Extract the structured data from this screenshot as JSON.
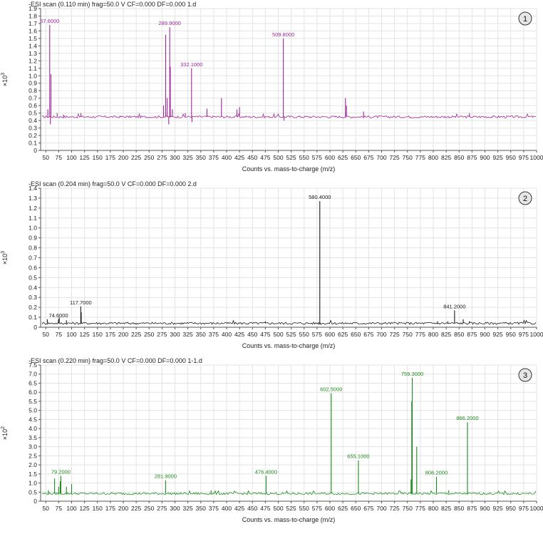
{
  "chart_data": [
    {
      "type": "line",
      "title": "-ESI scan (0.110 min) frag=50.0 V CF=0.000 DF=0.000 1.d",
      "badge": "1",
      "xlabel": "Counts vs. mass-to-charge (m/z)",
      "ylabel": "×10",
      "yexp": "3",
      "color": "#a0269a",
      "xlim": [
        40,
        1000
      ],
      "ylim": [
        0,
        1.9
      ],
      "ystep": 0.1,
      "ydecimals": 1,
      "baseline": 0.45,
      "x_ticks": [
        50,
        75,
        100,
        125,
        150,
        175,
        200,
        225,
        250,
        275,
        300,
        325,
        350,
        375,
        400,
        425,
        450,
        475,
        500,
        525,
        550,
        575,
        600,
        625,
        650,
        675,
        700,
        725,
        750,
        775,
        800,
        825,
        850,
        875,
        900,
        925,
        950,
        975,
        1000
      ],
      "peaks": [
        {
          "x": 54,
          "y": 0.55
        },
        {
          "x": 57.6,
          "y": 1.68
        },
        {
          "x": 60,
          "y": 1.02
        },
        {
          "x": 59,
          "y": 0.35
        },
        {
          "x": 72,
          "y": 0.5
        },
        {
          "x": 84,
          "y": 0.48
        },
        {
          "x": 118,
          "y": 0.5
        },
        {
          "x": 278,
          "y": 0.6
        },
        {
          "x": 282,
          "y": 1.55
        },
        {
          "x": 285,
          "y": 0.7
        },
        {
          "x": 288,
          "y": 0.35
        },
        {
          "x": 289.9,
          "y": 1.65
        },
        {
          "x": 291,
          "y": 1.12
        },
        {
          "x": 295,
          "y": 0.55
        },
        {
          "x": 320,
          "y": 0.5
        },
        {
          "x": 332.1,
          "y": 1.1
        },
        {
          "x": 333,
          "y": 0.38
        },
        {
          "x": 362,
          "y": 0.56
        },
        {
          "x": 390,
          "y": 0.7
        },
        {
          "x": 420,
          "y": 0.55
        },
        {
          "x": 425,
          "y": 0.58
        },
        {
          "x": 509.8,
          "y": 1.5
        },
        {
          "x": 511,
          "y": 0.4
        },
        {
          "x": 630,
          "y": 0.7
        },
        {
          "x": 632,
          "y": 0.6
        },
        {
          "x": 665,
          "y": 0.52
        },
        {
          "x": 870,
          "y": 0.5
        }
      ],
      "labels": [
        {
          "x": 57.6,
          "y": 1.68,
          "text": "57.6000"
        },
        {
          "x": 289.9,
          "y": 1.65,
          "text": "289.9000"
        },
        {
          "x": 332.1,
          "y": 1.1,
          "text": "332.1000"
        },
        {
          "x": 509.8,
          "y": 1.5,
          "text": "509.8000"
        }
      ]
    },
    {
      "type": "line",
      "title": "-ESI scan (0.204 min) frag=50.0 V CF=0.000 DF=0.000 2.d",
      "badge": "2",
      "xlabel": "Counts vs. mass-to-charge (m/z)",
      "ylabel": "×10",
      "yexp": "3",
      "color": "#1a1a1a",
      "xlim": [
        40,
        1000
      ],
      "ylim": [
        0,
        1.4
      ],
      "ystep": 0.1,
      "ydecimals": 1,
      "baseline": 0.04,
      "x_ticks": [
        50,
        75,
        100,
        125,
        150,
        175,
        200,
        225,
        250,
        275,
        300,
        325,
        350,
        375,
        400,
        425,
        450,
        475,
        500,
        525,
        550,
        575,
        600,
        625,
        650,
        675,
        700,
        725,
        750,
        775,
        800,
        825,
        850,
        875,
        900,
        925,
        950,
        975,
        1000
      ],
      "peaks": [
        {
          "x": 53,
          "y": 0.08
        },
        {
          "x": 74.6,
          "y": 0.08
        },
        {
          "x": 76,
          "y": 0.1
        },
        {
          "x": 90,
          "y": 0.07
        },
        {
          "x": 117.7,
          "y": 0.21
        },
        {
          "x": 118.6,
          "y": 0.15
        },
        {
          "x": 475,
          "y": 0.06
        },
        {
          "x": 578,
          "y": 0.05
        },
        {
          "x": 580.4,
          "y": 1.27
        },
        {
          "x": 581,
          "y": 0.03
        },
        {
          "x": 808,
          "y": 0.06
        },
        {
          "x": 828,
          "y": 0.06
        },
        {
          "x": 841.2,
          "y": 0.17
        },
        {
          "x": 858,
          "y": 0.08
        },
        {
          "x": 870,
          "y": 0.06
        }
      ],
      "labels": [
        {
          "x": 74.6,
          "y": 0.08,
          "text": "74.6000"
        },
        {
          "x": 117.7,
          "y": 0.21,
          "text": "117.7000"
        },
        {
          "x": 580.4,
          "y": 1.27,
          "text": "580.4000"
        },
        {
          "x": 841.2,
          "y": 0.17,
          "text": "841.2000"
        }
      ]
    },
    {
      "type": "line",
      "title": "-ESI scan (0.220 min) frag=50.0 V CF=0.000 DF=0.000 1-1.d",
      "badge": "3",
      "xlabel": "Counts vs. mass-to-charge (m/z)",
      "ylabel": "×10",
      "yexp": "2",
      "color": "#1e8a1e",
      "xlim": [
        40,
        1000
      ],
      "ylim": [
        0,
        7.5
      ],
      "ystep": 0.5,
      "ydecimals": 1,
      "baseline": 0.42,
      "x_ticks": [
        50,
        75,
        100,
        125,
        150,
        175,
        200,
        225,
        250,
        275,
        300,
        325,
        350,
        375,
        400,
        425,
        450,
        475,
        500,
        525,
        550,
        575,
        600,
        625,
        650,
        675,
        700,
        725,
        750,
        775,
        800,
        825,
        850,
        875,
        900,
        925,
        950,
        975,
        1000
      ],
      "peaks": [
        {
          "x": 55,
          "y": 0.6
        },
        {
          "x": 67,
          "y": 1.25
        },
        {
          "x": 75,
          "y": 0.8
        },
        {
          "x": 78,
          "y": 1.1
        },
        {
          "x": 79.2,
          "y": 1.4
        },
        {
          "x": 90,
          "y": 0.8
        },
        {
          "x": 100,
          "y": 0.95
        },
        {
          "x": 281.9,
          "y": 1.15
        },
        {
          "x": 370,
          "y": 0.6
        },
        {
          "x": 476.4,
          "y": 1.4
        },
        {
          "x": 602.5,
          "y": 5.95
        },
        {
          "x": 655.1,
          "y": 2.25
        },
        {
          "x": 757,
          "y": 1.2
        },
        {
          "x": 758.4,
          "y": 5.5
        },
        {
          "x": 759.3,
          "y": 6.8
        },
        {
          "x": 768,
          "y": 3.0
        },
        {
          "x": 806.2,
          "y": 1.35
        },
        {
          "x": 830,
          "y": 0.6
        },
        {
          "x": 866.2,
          "y": 4.35
        }
      ],
      "labels": [
        {
          "x": 79.2,
          "y": 1.4,
          "text": "79.2000"
        },
        {
          "x": 281.9,
          "y": 1.15,
          "text": "281.9000"
        },
        {
          "x": 476.4,
          "y": 1.4,
          "text": "476.4000"
        },
        {
          "x": 602.5,
          "y": 5.95,
          "text": "602.5000"
        },
        {
          "x": 655.1,
          "y": 2.25,
          "text": "655.1000"
        },
        {
          "x": 759.3,
          "y": 6.8,
          "text": "759.3000"
        },
        {
          "x": 806.2,
          "y": 1.35,
          "text": "806.2000"
        },
        {
          "x": 866.2,
          "y": 4.35,
          "text": "866.2000"
        }
      ]
    }
  ]
}
